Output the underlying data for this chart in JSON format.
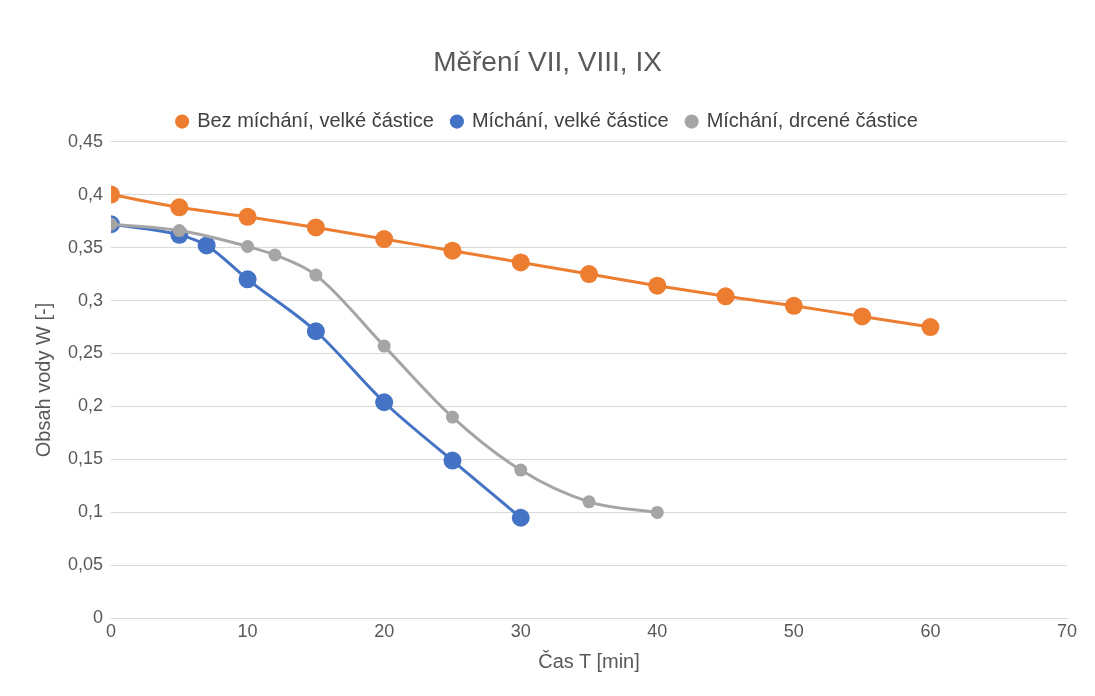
{
  "chart_data": {
    "type": "line",
    "title": "Měření VII, VIII, IX",
    "xlabel": "Čas T [min]",
    "ylabel": "Obsah vody W [-]",
    "series": [
      {
        "name": "Bez míchání, velké částice",
        "color": "#ed7d31",
        "x": [
          0,
          5,
          10,
          15,
          20,
          25,
          30,
          35,
          40,
          45,
          50,
          55,
          60
        ],
        "values": [
          0.4,
          0.388,
          0.379,
          0.369,
          0.358,
          0.347,
          0.336,
          0.325,
          0.314,
          0.304,
          0.295,
          0.285,
          0.275
        ]
      },
      {
        "name": "Míchání, velké částice",
        "color": "#4472c4",
        "x": [
          0,
          5,
          7,
          10,
          15,
          20,
          25,
          30
        ],
        "values": [
          0.372,
          0.362,
          0.352,
          0.32,
          0.271,
          0.204,
          0.149,
          0.095
        ]
      },
      {
        "name": "Míchání, drcené částice",
        "color": "#a5a5a5",
        "x": [
          0,
          5,
          10,
          12,
          15,
          20,
          25,
          30,
          35,
          40
        ],
        "values": [
          0.372,
          0.366,
          0.351,
          0.343,
          0.324,
          0.257,
          0.19,
          0.14,
          0.11,
          0.1
        ]
      }
    ],
    "xlim": [
      0,
      70
    ],
    "xticks": [
      0,
      10,
      20,
      30,
      40,
      50,
      60,
      70
    ],
    "ylim": [
      0,
      0.45
    ],
    "yticks": [
      0,
      {
        "value": 0.05,
        "label": "0,05"
      },
      {
        "value": 0.1,
        "label": "0,1"
      },
      {
        "value": 0.15,
        "label": "0,15"
      },
      {
        "value": 0.2,
        "label": "0,2"
      },
      {
        "value": 0.25,
        "label": "0,25"
      },
      {
        "value": 0.3,
        "label": "0,3"
      },
      {
        "value": 0.35,
        "label": "0,35"
      },
      {
        "value": 0.4,
        "label": "0,4"
      },
      {
        "value": 0.45,
        "label": "0,45"
      }
    ],
    "grid": "y",
    "legend": "top",
    "marker": "circle",
    "line_style": "solid"
  }
}
